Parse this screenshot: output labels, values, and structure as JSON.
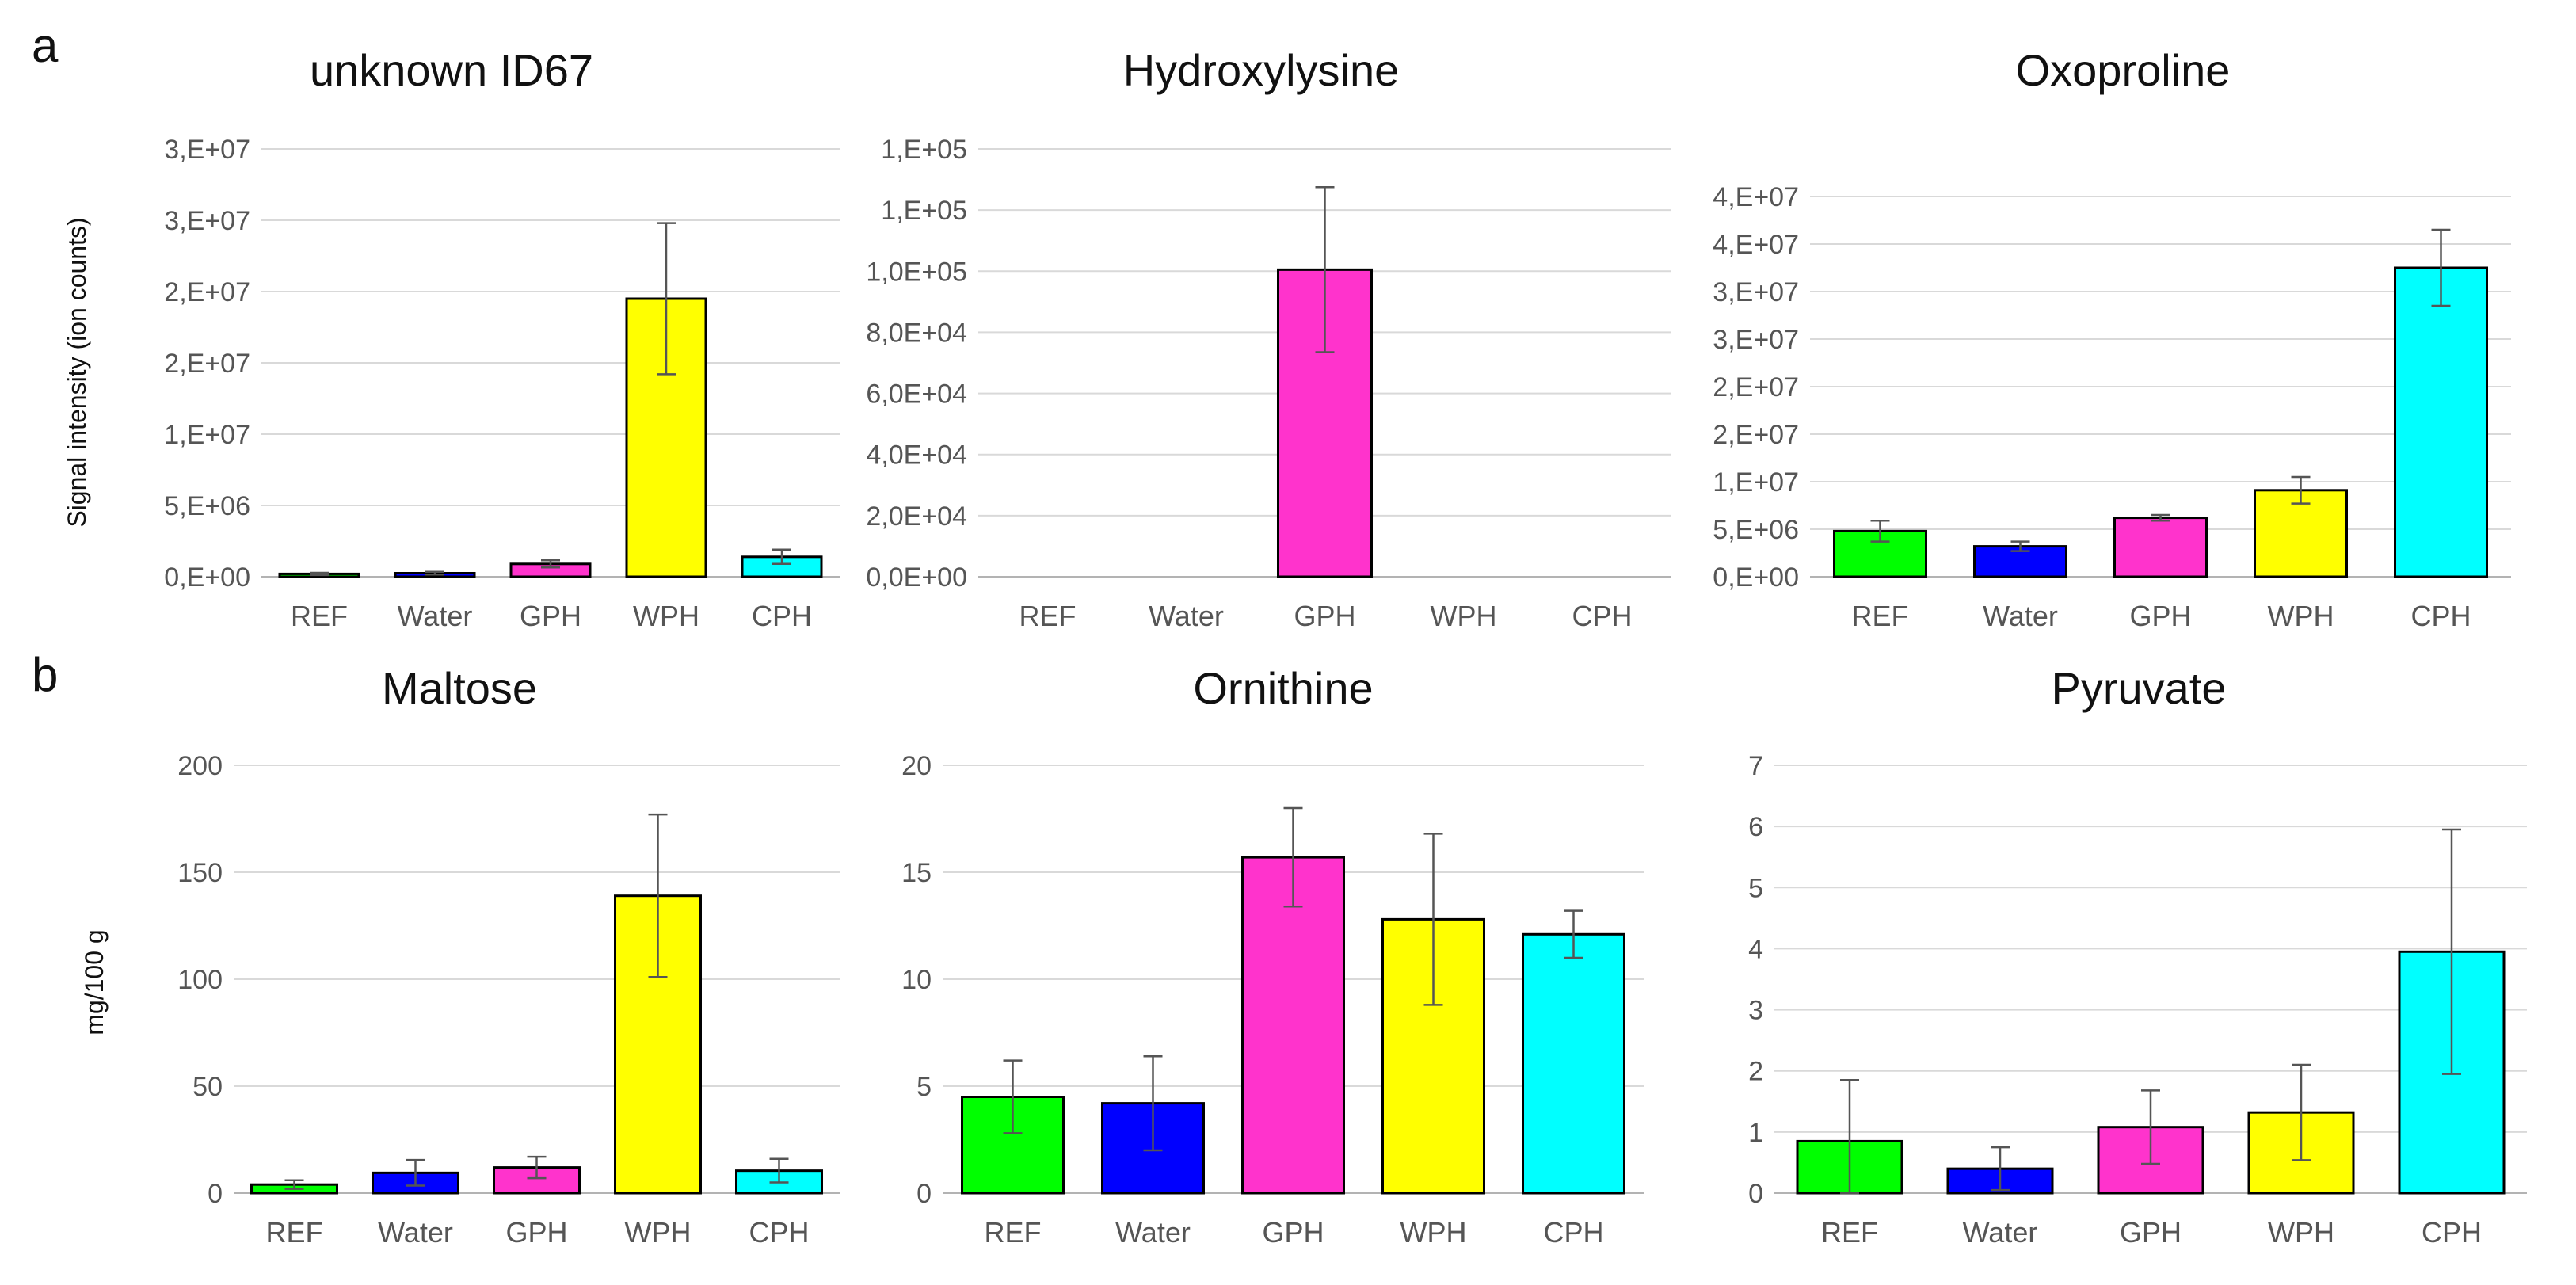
{
  "panel_labels": [
    "a",
    "b"
  ],
  "chart_data": [
    {
      "type": "bar",
      "title": "unknown ID67",
      "ylabel": "Signal intensity (ion counts)",
      "categories": [
        "REF",
        "Water",
        "GPH",
        "WPH",
        "CPH"
      ],
      "values": [
        200000,
        250000,
        900000,
        19500000,
        1400000
      ],
      "errors": [
        80000,
        100000,
        250000,
        5300000,
        500000
      ],
      "colors": [
        "#00ff00",
        "#0000ff",
        "#ff33cc",
        "#ffff00",
        "#00ffff"
      ],
      "ylim": [
        0,
        30000000
      ],
      "yticks": [
        0,
        5000000,
        10000000,
        15000000,
        20000000,
        25000000,
        30000000
      ],
      "ytick_labels": [
        "0,E+00",
        "5,E+06",
        "1,E+07",
        "2,E+07",
        "2,E+07",
        "3,E+07",
        "3,E+07"
      ]
    },
    {
      "type": "bar",
      "title": "Hydroxylysine",
      "ylabel": "",
      "categories": [
        "REF",
        "Water",
        "GPH",
        "WPH",
        "CPH"
      ],
      "values": [
        0,
        0,
        100500,
        0,
        0
      ],
      "errors": [
        0,
        0,
        27000,
        0,
        0
      ],
      "colors": [
        "#00ff00",
        "#0000ff",
        "#ff33cc",
        "#ffff00",
        "#00ffff"
      ],
      "ylim": [
        0,
        140000
      ],
      "yticks": [
        0,
        20000,
        40000,
        60000,
        80000,
        100000,
        120000,
        140000
      ],
      "ytick_labels": [
        "0,0E+00",
        "2,0E+04",
        "4,0E+04",
        "6,0E+04",
        "8,0E+04",
        "1,0E+05",
        "1,E+05",
        "1,E+05"
      ]
    },
    {
      "type": "bar",
      "title": "Oxoproline",
      "ylabel": "",
      "categories": [
        "REF",
        "Water",
        "GPH",
        "WPH",
        "CPH"
      ],
      "values": [
        4800000,
        3200000,
        6200000,
        9100000,
        32500000
      ],
      "errors": [
        1100000,
        500000,
        300000,
        1400000,
        4000000
      ],
      "colors": [
        "#00ff00",
        "#0000ff",
        "#ff33cc",
        "#ffff00",
        "#00ffff"
      ],
      "ylim": [
        0,
        45000000
      ],
      "yticks": [
        0,
        5000000,
        10000000,
        15000000,
        20000000,
        25000000,
        30000000,
        35000000,
        40000000
      ],
      "ytick_labels": [
        "0,E+00",
        "5,E+06",
        "1,E+07",
        "2,E+07",
        "2,E+07",
        "3,E+07",
        "3,E+07",
        "4,E+07",
        "4,E+07"
      ]
    },
    {
      "type": "bar",
      "title": "Maltose",
      "ylabel": "mg/100 g",
      "categories": [
        "REF",
        "Water",
        "GPH",
        "WPH",
        "CPH"
      ],
      "values": [
        4,
        9.5,
        12,
        139,
        10.5
      ],
      "errors": [
        2,
        6,
        5,
        38,
        5.5
      ],
      "colors": [
        "#00ff00",
        "#0000ff",
        "#ff33cc",
        "#ffff00",
        "#00ffff"
      ],
      "ylim": [
        0,
        200
      ],
      "yticks": [
        0,
        50,
        100,
        150,
        200
      ],
      "ytick_labels": [
        "0",
        "50",
        "100",
        "150",
        "200"
      ]
    },
    {
      "type": "bar",
      "title": "Ornithine",
      "ylabel": "",
      "categories": [
        "REF",
        "Water",
        "GPH",
        "WPH",
        "CPH"
      ],
      "values": [
        4.5,
        4.2,
        15.7,
        12.8,
        12.1
      ],
      "errors": [
        1.7,
        2.2,
        2.3,
        4.0,
        1.1
      ],
      "colors": [
        "#00ff00",
        "#0000ff",
        "#ff33cc",
        "#ffff00",
        "#00ffff"
      ],
      "ylim": [
        0,
        20
      ],
      "yticks": [
        0,
        5,
        10,
        15,
        20
      ],
      "ytick_labels": [
        "0",
        "5",
        "10",
        "15",
        "20"
      ]
    },
    {
      "type": "bar",
      "title": "Pyruvate",
      "ylabel": "",
      "categories": [
        "REF",
        "Water",
        "GPH",
        "WPH",
        "CPH"
      ],
      "values": [
        0.85,
        0.4,
        1.08,
        1.32,
        3.95
      ],
      "errors": [
        1.0,
        0.35,
        0.6,
        0.78,
        2.0
      ],
      "colors": [
        "#00ff00",
        "#0000ff",
        "#ff33cc",
        "#ffff00",
        "#00ffff"
      ],
      "ylim": [
        0,
        7
      ],
      "yticks": [
        0,
        1,
        2,
        3,
        4,
        5,
        6,
        7
      ],
      "ytick_labels": [
        "0",
        "1",
        "2",
        "3",
        "4",
        "5",
        "6",
        "7"
      ]
    }
  ]
}
